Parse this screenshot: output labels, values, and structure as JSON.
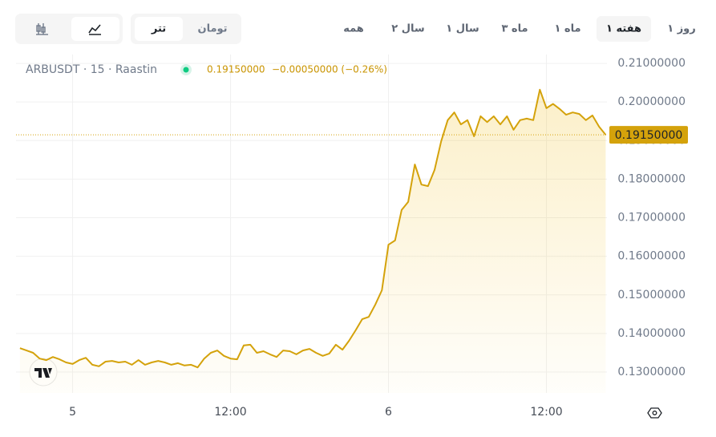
{
  "toolbar": {
    "periods": [
      "۱ روز",
      "۱ هفته",
      "۱ ماه",
      "۳ ماه",
      "۱ سال",
      "۲ سال",
      "همه"
    ],
    "selected_period": 1,
    "currencies": [
      "تتر",
      "تومان"
    ],
    "selected_currency": 0
  },
  "chart_data": {
    "type": "line",
    "title": "ARBUSDT · 15 · Raastin",
    "legend_price": "0.19150000",
    "legend_change": "−0.00050000 (−0.26%)",
    "last_value_label": "0.19150000",
    "color": "#d4a20b",
    "grid": true,
    "x": [
      -4,
      -3.5,
      -3,
      -2.5,
      -2,
      -1.5,
      -1,
      -0.5,
      0,
      0.5,
      1,
      1.5,
      2,
      2.5,
      3,
      3.5,
      4,
      4.5,
      5,
      5.5,
      6,
      6.5,
      7,
      7.5,
      8,
      8.5,
      9,
      9.5,
      10,
      10.5,
      11,
      11.5,
      12,
      12.5,
      13,
      13.5,
      14,
      14.5,
      15,
      15.5,
      16,
      16.5,
      17,
      17.5,
      18,
      18.5,
      19,
      19.5,
      20,
      20.5,
      21,
      21.5,
      22,
      22.5,
      23,
      23.5,
      24,
      24.5,
      25,
      25.5,
      26,
      26.5,
      27,
      27.5,
      28,
      28.5,
      29,
      29.5,
      30,
      30.5,
      31,
      31.5,
      32,
      32.5,
      33,
      33.5,
      34,
      34.5,
      35,
      35.5,
      36,
      36.5,
      37,
      37.5,
      38,
      38.5,
      39,
      39.5,
      40,
      40.5
    ],
    "values": [
      0.1362,
      0.1356,
      0.135,
      0.1335,
      0.1331,
      0.1339,
      0.1333,
      0.1325,
      0.1321,
      0.1331,
      0.1337,
      0.1319,
      0.1315,
      0.1327,
      0.1329,
      0.1325,
      0.1327,
      0.1319,
      0.1331,
      0.1319,
      0.1325,
      0.1329,
      0.1325,
      0.1319,
      0.1323,
      0.1317,
      0.1319,
      0.1312,
      0.1335,
      0.135,
      0.1356,
      0.1342,
      0.1335,
      0.1333,
      0.1369,
      0.1371,
      0.135,
      0.1354,
      0.1346,
      0.1339,
      0.1356,
      0.1354,
      0.1346,
      0.1356,
      0.136,
      0.135,
      0.1342,
      0.1348,
      0.1371,
      0.1358,
      0.1381,
      0.1408,
      0.1437,
      0.1443,
      0.1475,
      0.1512,
      0.163,
      0.1641,
      0.172,
      0.1741,
      0.1838,
      0.1786,
      0.1782,
      0.1824,
      0.1898,
      0.1953,
      0.1973,
      0.1942,
      0.1953,
      0.1911,
      0.1963,
      0.1948,
      0.1963,
      0.1942,
      0.1963,
      0.1928,
      0.1953,
      0.1957,
      0.1953,
      0.2032,
      0.1984,
      0.1995,
      0.1982,
      0.1967,
      0.1973,
      0.1969,
      0.1953,
      0.1965,
      0.1936,
      0.1915
    ],
    "xlim": [
      -4.3,
      40.6
    ],
    "xticks": [
      {
        "value": 0,
        "label": "5"
      },
      {
        "value": 12,
        "label": "12:00"
      },
      {
        "value": 24,
        "label": "6"
      },
      {
        "value": 36,
        "label": "12:00"
      }
    ],
    "ylim": [
      0.1246,
      0.2123
    ],
    "yticks": [
      {
        "value": 0.13,
        "label": "0.13000000"
      },
      {
        "value": 0.14,
        "label": "0.14000000"
      },
      {
        "value": 0.15,
        "label": "0.15000000"
      },
      {
        "value": 0.16,
        "label": "0.16000000"
      },
      {
        "value": 0.17,
        "label": "0.17000000"
      },
      {
        "value": 0.18,
        "label": "0.18000000"
      },
      {
        "value": 0.19,
        "label": "0.19000000"
      },
      {
        "value": 0.2,
        "label": "0.20000000"
      },
      {
        "value": 0.21,
        "label": "0.21000000"
      }
    ]
  }
}
